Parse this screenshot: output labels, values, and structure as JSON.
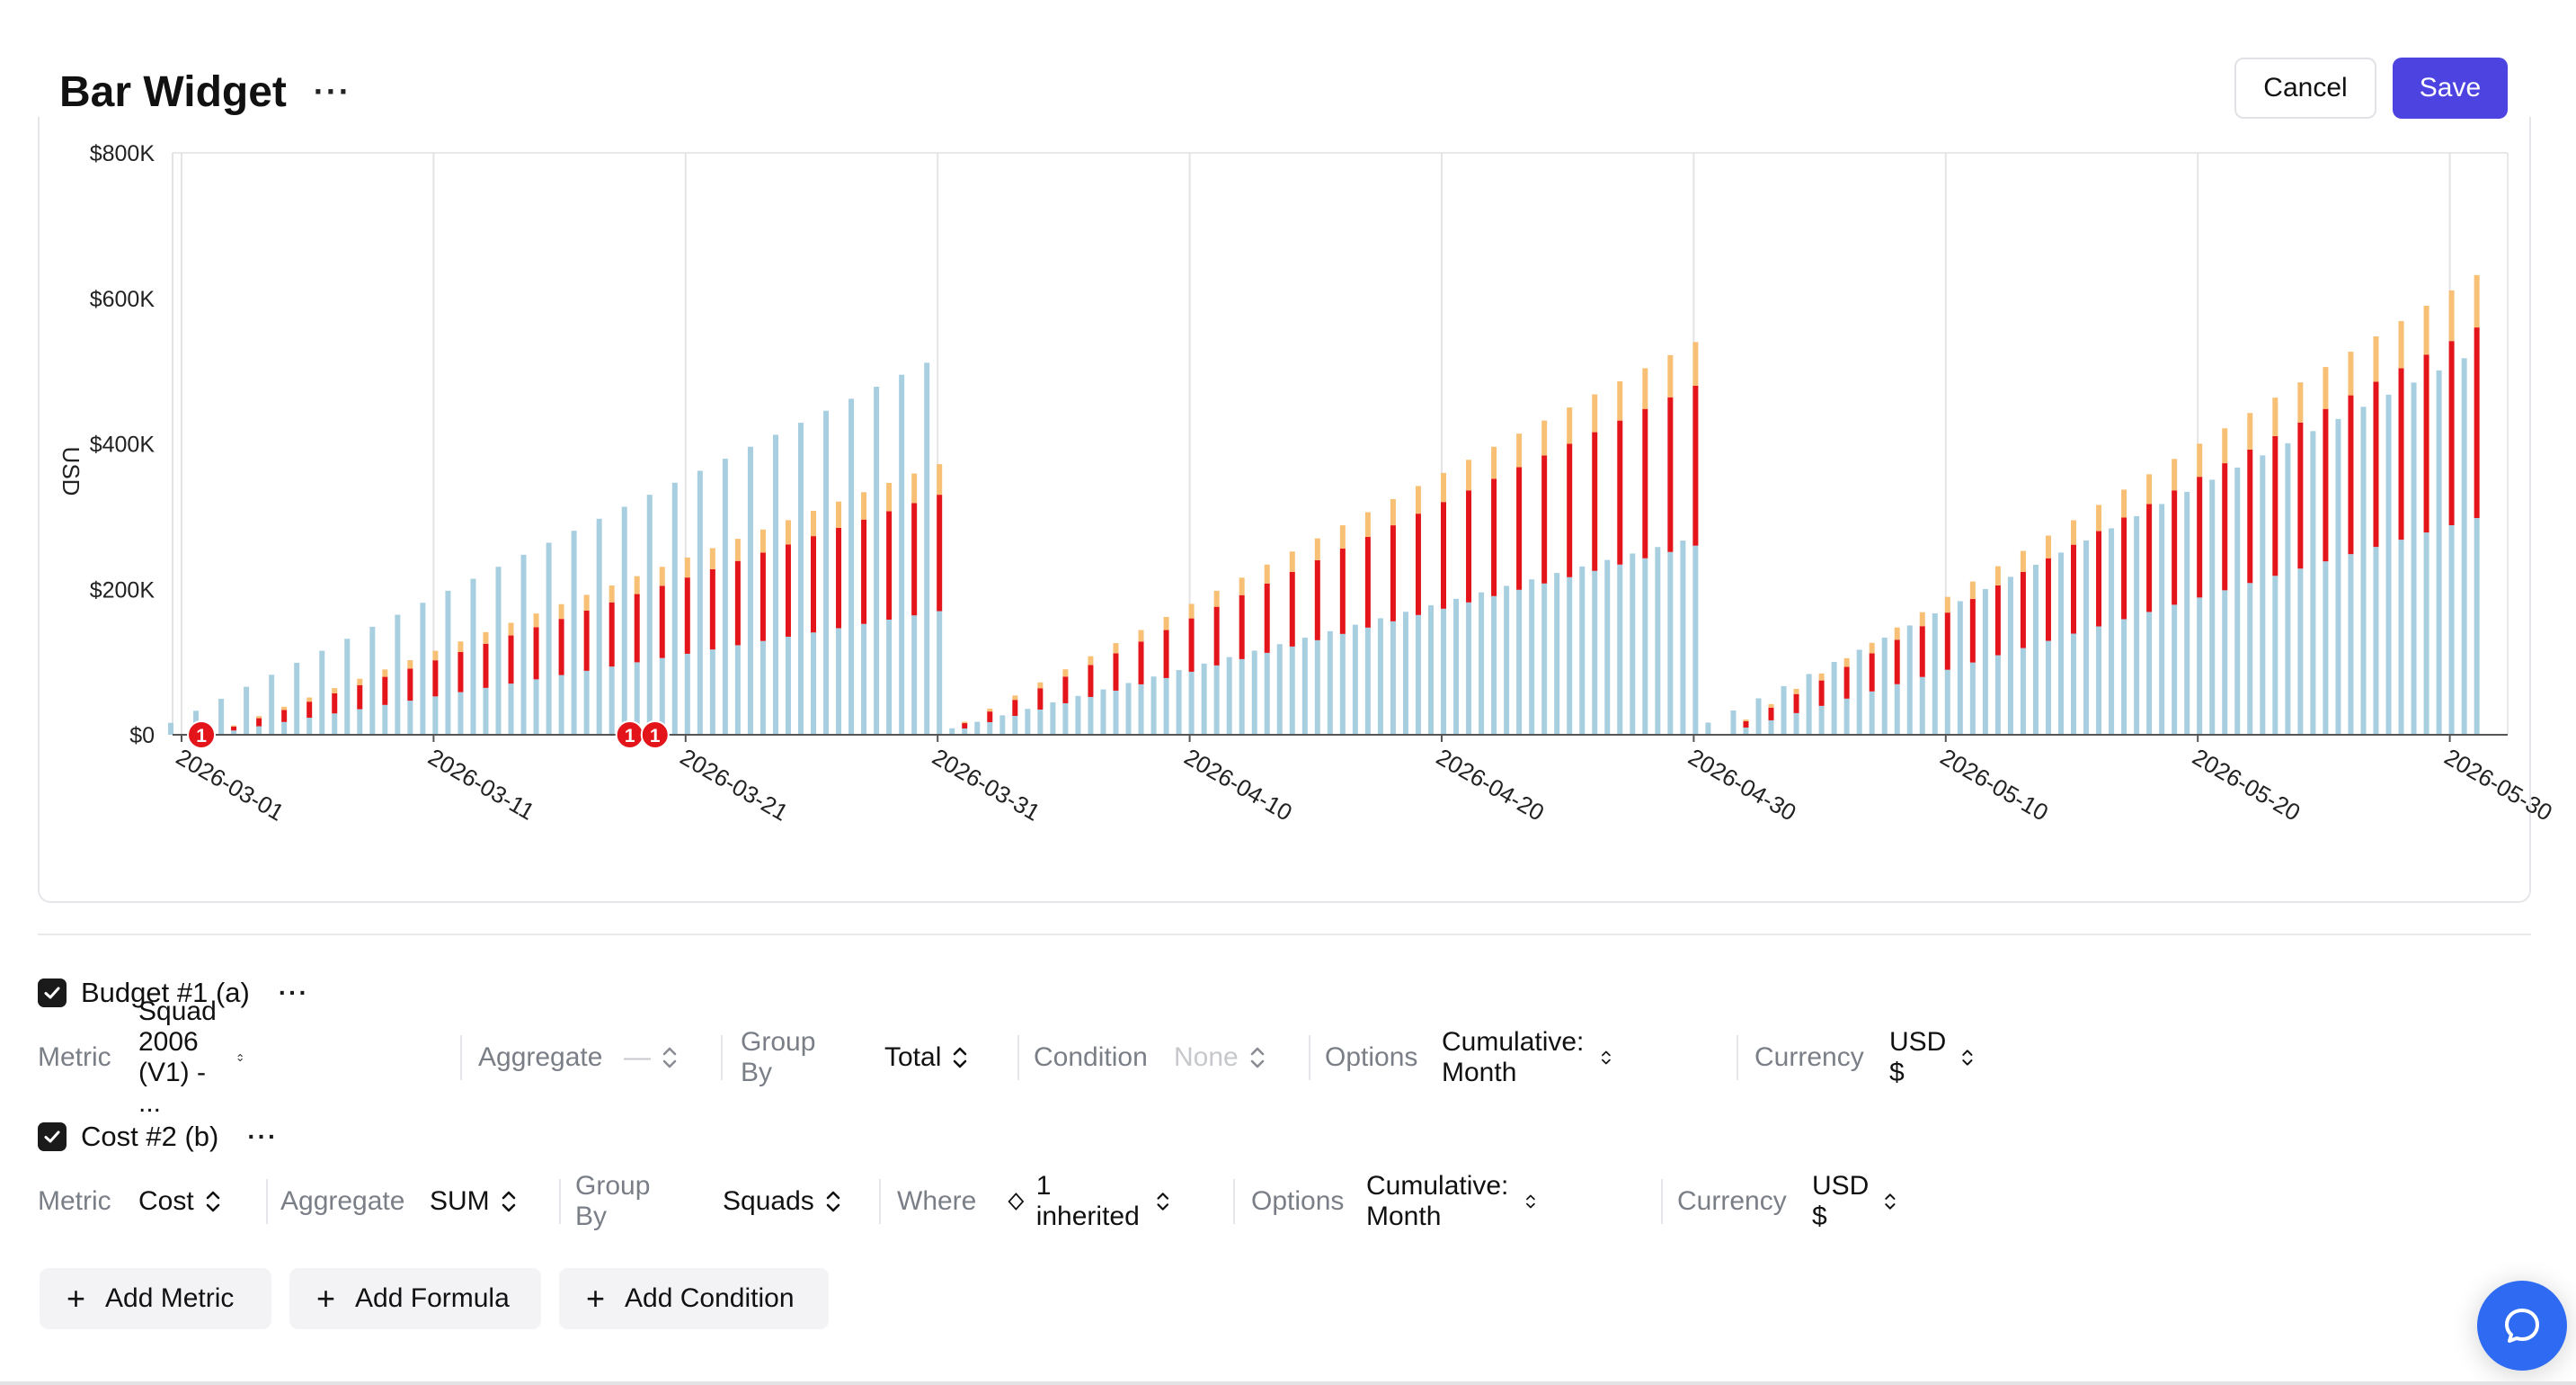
{
  "header": {
    "title": "Bar Widget",
    "more_label": "···",
    "cancel_label": "Cancel",
    "save_label": "Save"
  },
  "colors": {
    "accent": "#4c43e0",
    "budget": "#a8cfe0",
    "cost_base": "#e3151a",
    "cost_top": "#f8c074",
    "fab": "#2f6bf2"
  },
  "chart_data": {
    "type": "bar",
    "ylabel": "USD",
    "ylim": [
      0,
      800000
    ],
    "y_ticks": [
      "$0",
      "$200K",
      "$400K",
      "$600K",
      "$800K"
    ],
    "x_ticks": [
      "2026-03-01",
      "2026-03-11",
      "2026-03-21",
      "2026-03-31",
      "2026-04-10",
      "2026-04-20",
      "2026-04-30",
      "2026-05-10",
      "2026-05-20",
      "2026-05-30"
    ],
    "grid": "vertical lines at x ticks",
    "annotations": [
      {
        "date": "2026-03-02",
        "label": "1"
      },
      {
        "date": "2026-03-19",
        "label": "1"
      },
      {
        "date": "2026-03-20",
        "label": "1"
      }
    ],
    "months": [
      {
        "start": "2026-03-01",
        "days": 31,
        "budget_step": 16500,
        "cost_start_day": 3,
        "cost_low_max": 170000,
        "cost_high_max": 330000,
        "cost_top_max": 372000
      },
      {
        "start": "2026-04-01",
        "days": 30,
        "budget_step": 8900,
        "cost_start_day": 1,
        "cost_low_max": 260000,
        "cost_high_max": 480000,
        "cost_top_max": 540000
      },
      {
        "start": "2026-05-01",
        "days": 31,
        "budget_step": 16700,
        "cost_start_day": 2,
        "cost_low_max": 298000,
        "cost_high_max": 560000,
        "cost_top_max": 632000
      }
    ],
    "series": [
      {
        "name": "Budget #1 (a)",
        "description": "cumulative by month; daily increase = budget_step"
      },
      {
        "name": "Cost #2 (b)",
        "description": "cumulative by month; stacked segments"
      }
    ]
  },
  "metrics": [
    {
      "name": "Budget #1 (a)",
      "fields": [
        {
          "label": "Metric",
          "value": "Squad 2006 (V1) - ...",
          "muted": false
        },
        {
          "label": "Aggregate",
          "value": "—",
          "muted": true
        },
        {
          "label": "Group By",
          "value": "Total",
          "muted": false
        },
        {
          "label": "Condition",
          "value": "None",
          "muted": true
        },
        {
          "label": "Options",
          "value": "Cumulative: Month",
          "muted": false
        },
        {
          "label": "Currency",
          "value": "USD $",
          "muted": false
        }
      ]
    },
    {
      "name": "Cost #2 (b)",
      "fields": [
        {
          "label": "Metric",
          "value": "Cost",
          "muted": false
        },
        {
          "label": "Aggregate",
          "value": "SUM",
          "muted": false
        },
        {
          "label": "Group By",
          "value": "Squads",
          "muted": false
        },
        {
          "label": "Where",
          "value": "1 inherited",
          "muted": false
        },
        {
          "label": "Options",
          "value": "Cumulative: Month",
          "muted": false
        },
        {
          "label": "Currency",
          "value": "USD $",
          "muted": false
        }
      ]
    }
  ],
  "actions": {
    "add_metric": "Add Metric",
    "add_formula": "Add Formula",
    "add_condition": "Add Condition"
  }
}
